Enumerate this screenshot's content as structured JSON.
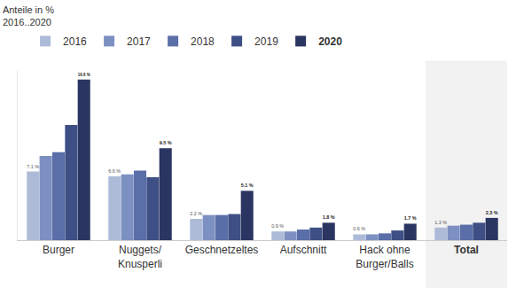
{
  "chart_data": {
    "type": "bar",
    "title": "Anteile in %\n2016..2020",
    "categories": [
      "Burger",
      "Nuggets/\nKnusperli",
      "Geschnetzeltes",
      "Aufschnitt",
      "Hack ohne\nBurger/Balls",
      "Total"
    ],
    "series": [
      {
        "name": "2016",
        "color": "#aebbd8",
        "values": [
          7.1,
          6.6,
          2.2,
          0.9,
          0.6,
          1.3
        ],
        "value_labels": [
          "7.1 %",
          "6.6 %",
          "2.2 %",
          "0.9 %",
          "0.6 %",
          "1.3 %"
        ]
      },
      {
        "name": "2017",
        "color": "#7d90c2",
        "values": [
          8.7,
          6.8,
          2.6,
          0.9,
          0.6,
          1.5
        ]
      },
      {
        "name": "2018",
        "color": "#5a6ea8",
        "values": [
          9.1,
          7.2,
          2.6,
          1.1,
          0.7,
          1.6
        ]
      },
      {
        "name": "2019",
        "color": "#3e4f86",
        "values": [
          11.9,
          6.5,
          2.7,
          1.3,
          1.0,
          1.8
        ]
      },
      {
        "name": "2020",
        "color": "#2b3561",
        "values": [
          16.6,
          9.5,
          5.1,
          1.8,
          1.7,
          2.3
        ],
        "value_labels": [
          "16.6 %",
          "9.5 %",
          "5.1 %",
          "1.8 %",
          "1.7 %",
          "2.3 %"
        ]
      }
    ],
    "ylim": [
      0,
      17.5
    ],
    "yticks": [
      0
    ],
    "grid": false,
    "legend": "top",
    "data_labels": true,
    "tick_labels": "x"
  }
}
